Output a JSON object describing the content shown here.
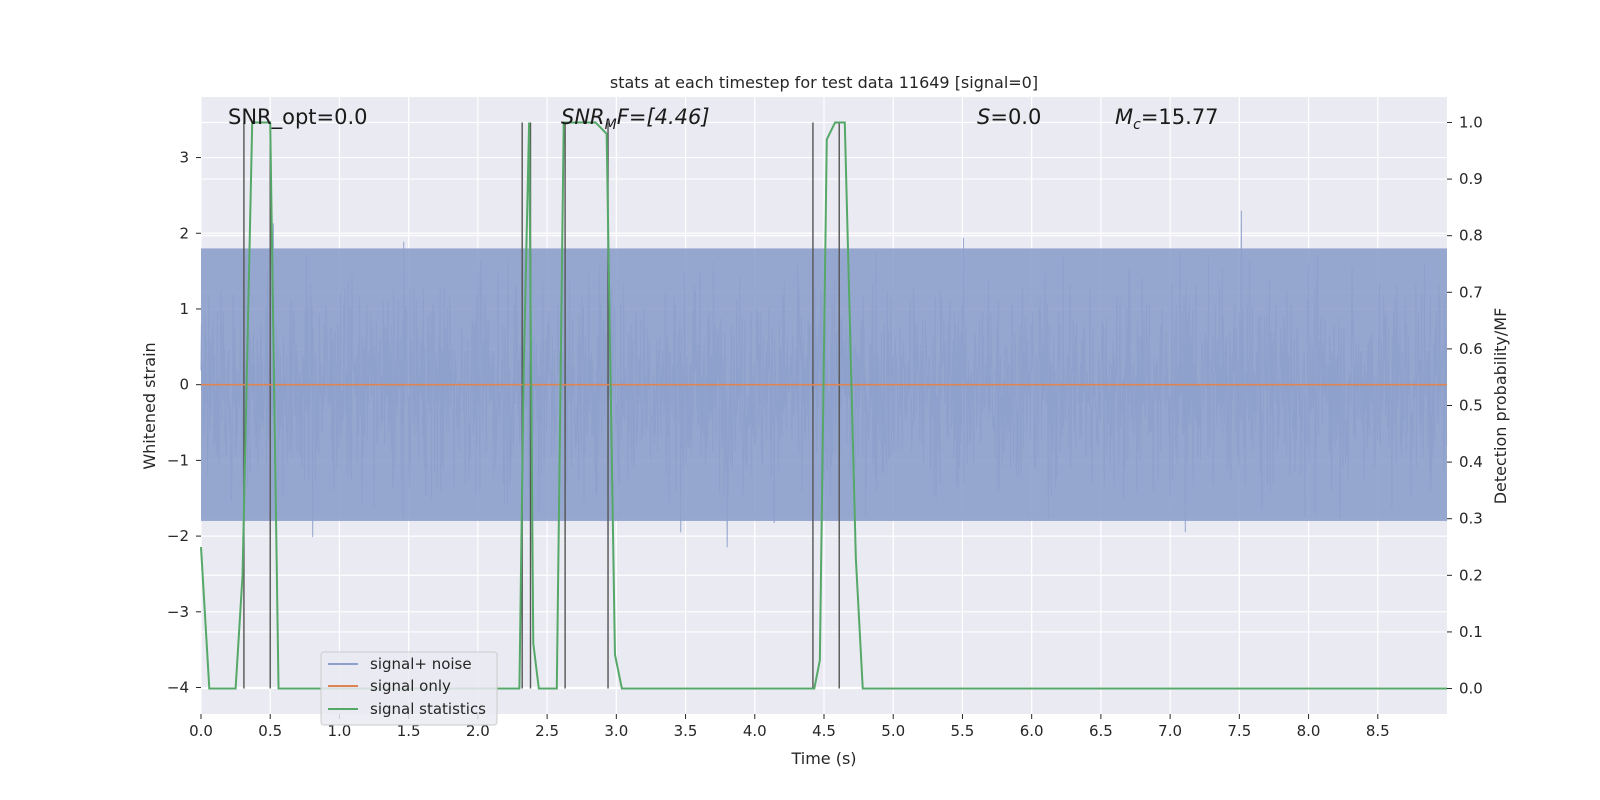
{
  "chart_data": {
    "type": "line",
    "title": "stats at each timestep for test data 11649 [signal=0]",
    "xlabel": "Time (s)",
    "ylabel": "Whitened strain",
    "y2label": "Detection probability/MF",
    "xlim": [
      0,
      9.0
    ],
    "ylim": [
      -4.35,
      3.8
    ],
    "y2lim": [
      -0.045,
      1.045
    ],
    "x_ticks": [
      "0.0",
      "0.5",
      "1.0",
      "1.5",
      "2.0",
      "2.5",
      "3.0",
      "3.5",
      "4.0",
      "4.5",
      "5.0",
      "5.5",
      "6.0",
      "6.5",
      "7.0",
      "7.5",
      "8.0",
      "8.5"
    ],
    "y_ticks": [
      "3",
      "2",
      "1",
      "0",
      "−1",
      "−2",
      "−3",
      "−4"
    ],
    "y2_ticks": [
      "1.0",
      "0.9",
      "0.8",
      "0.7",
      "0.6",
      "0.5",
      "0.4",
      "0.3",
      "0.2",
      "0.1",
      "0.0"
    ],
    "grid": true,
    "legend_position": "lower-left",
    "series": [
      {
        "name": "signal+ noise",
        "color": "#8da0cb",
        "description_kind": "noise",
        "x_range": [
          0,
          9.0
        ],
        "envelope_typical": [
          -1.8,
          1.8
        ],
        "envelope_peak": [
          -4.0,
          3.4
        ]
      },
      {
        "name": "signal only",
        "color": "#dd8452",
        "x": [
          0,
          9.0
        ],
        "y": [
          0,
          0
        ]
      },
      {
        "name": "signal statistics",
        "color": "#55a868",
        "axis": "right",
        "x": [
          0.0,
          0.06,
          0.1,
          0.25,
          0.3,
          0.37,
          0.45,
          0.5,
          0.56,
          0.62,
          0.7,
          0.8,
          0.9,
          2.3,
          2.33,
          2.37,
          2.4,
          2.44,
          2.5,
          2.57,
          2.62,
          2.68,
          2.75,
          2.85,
          2.93,
          2.99,
          3.04,
          3.1,
          4.43,
          4.47,
          4.52,
          4.58,
          4.65,
          4.73,
          4.78,
          9.0
        ],
        "y": [
          0.25,
          0.0,
          0.0,
          0.0,
          0.2,
          1.0,
          1.0,
          1.0,
          0.0,
          0.0,
          0.0,
          0.0,
          0.0,
          0.0,
          0.55,
          1.0,
          0.08,
          0.0,
          0.0,
          0.0,
          1.0,
          1.0,
          1.0,
          1.0,
          0.98,
          0.06,
          0.0,
          0.0,
          0.0,
          0.05,
          0.97,
          1.0,
          1.0,
          0.23,
          0.0,
          0.0
        ]
      }
    ],
    "event_lines_x": [
      0.31,
      0.5,
      2.32,
      2.38,
      2.63,
      2.94,
      4.42,
      4.61
    ]
  },
  "annotations": {
    "snr_opt": "SNR_opt=0.0",
    "snr_mf_name": "SNR",
    "snr_mf_sub": "M",
    "snr_mf_rest": "F=[4.46]",
    "s_name": "S",
    "s_rest": "=0.0",
    "mc_name": "M",
    "mc_sub": "c",
    "mc_rest": "=15.77"
  },
  "legend": {
    "items": [
      "signal+ noise",
      "signal only",
      "signal statistics"
    ]
  }
}
